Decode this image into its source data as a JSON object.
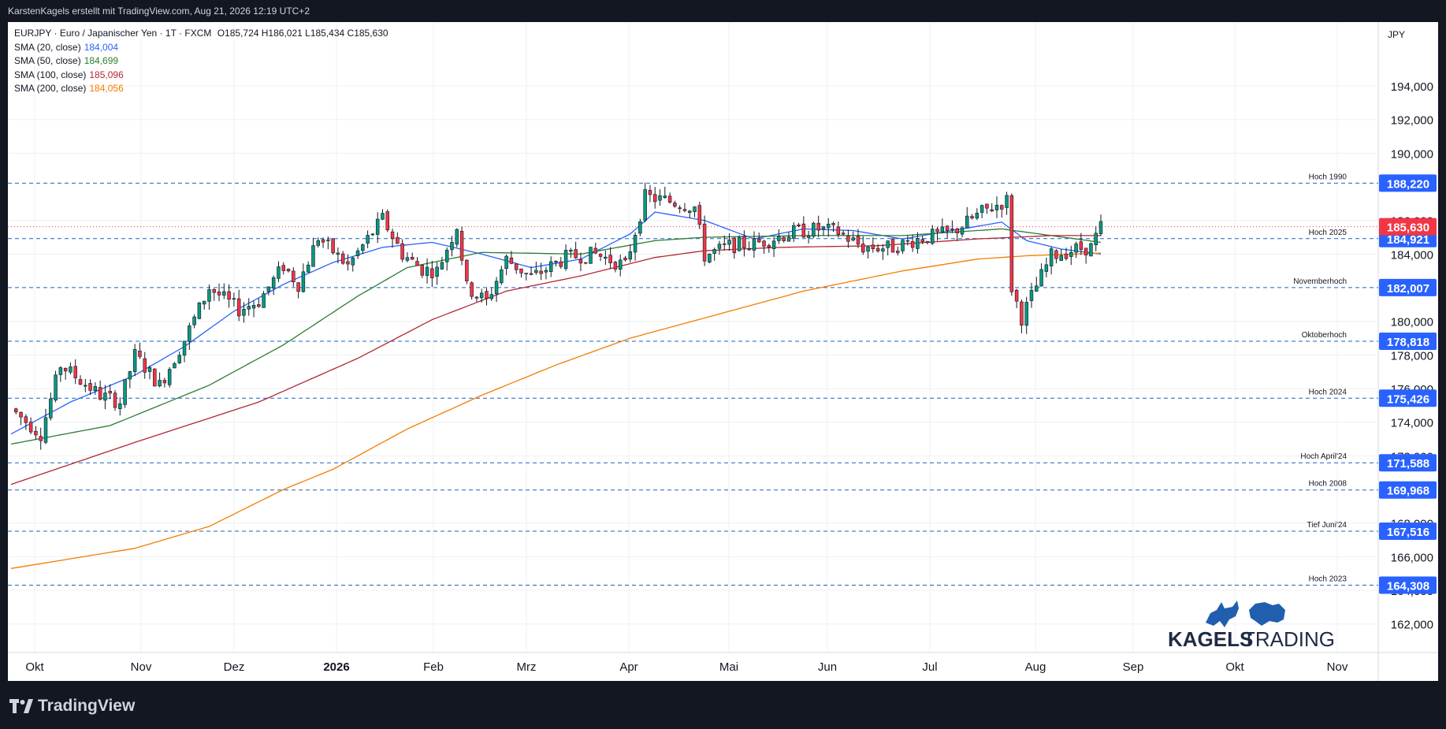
{
  "header": {
    "attribution": "KarstenKagels erstellt mit TradingView.com, Aug 21, 2026 12:19 UTC+2"
  },
  "symbol": {
    "ticker": "EURJPY",
    "description": "Euro / Japanischer Yen",
    "interval": "1T",
    "exchange": "FXCM",
    "ohlc_text": "O185,724 H186,021 L185,434 C185,630",
    "currency": "JPY"
  },
  "indicators": [
    {
      "label": "SMA (20, close)",
      "value": "184,004",
      "color": "#2962ff"
    },
    {
      "label": "SMA (50, close)",
      "value": "184,699",
      "color": "#2e7d32"
    },
    {
      "label": "SMA (100, close)",
      "value": "185,096",
      "color": "#b22833"
    },
    {
      "label": "SMA (200, close)",
      "value": "184,056",
      "color": "#f57c00"
    }
  ],
  "footer": {
    "brand": "TradingView"
  },
  "watermark": {
    "text_bold": "KAGELS",
    "text_light": "TRADING"
  },
  "chart_data": {
    "type": "candlestick",
    "x_axis": {
      "tick_labels": [
        "Okt",
        "Nov",
        "Dez",
        "2026",
        "Feb",
        "Mrz",
        "Apr",
        "Mai",
        "Jun",
        "Jul",
        "Aug",
        "Sep",
        "Okt",
        "Nov"
      ]
    },
    "y_axis": {
      "range": [
        160.3,
        197.8
      ],
      "tick_values": [
        162,
        164,
        166,
        168,
        172,
        174,
        176,
        178,
        180,
        184,
        186,
        190,
        192,
        194
      ],
      "tick_labels": [
        "162,000",
        "164,000",
        "166,000",
        "168,000",
        "172,000",
        "174,000",
        "176,000",
        "178,000",
        "180,000",
        "184,000",
        "186,000",
        "190,000",
        "192,000",
        "194,000"
      ]
    },
    "horizontal_levels": [
      {
        "label": "Hoch 1990",
        "value": 188.22,
        "price_label": "188,220"
      },
      {
        "label": "Hoch 2025",
        "value": 184.921,
        "price_label": "184,921"
      },
      {
        "label": "Novemberhoch",
        "value": 182.007,
        "price_label": "182,007"
      },
      {
        "label": "Oktoberhoch",
        "value": 178.818,
        "price_label": "178,818"
      },
      {
        "label": "Hoch 2024",
        "value": 175.426,
        "price_label": "175,426"
      },
      {
        "label": "Hoch April'24",
        "value": 171.588,
        "price_label": "171,588"
      },
      {
        "label": "Hoch 2008",
        "value": 169.968,
        "price_label": "169,968"
      },
      {
        "label": "Tief Juni'24",
        "value": 167.516,
        "price_label": "167,516"
      },
      {
        "label": "Hoch 2023",
        "value": 164.308,
        "price_label": "164,308"
      }
    ],
    "last_price": {
      "value": 185.63,
      "label": "185,630",
      "color": "#f23645"
    },
    "candle_colors": {
      "up": "#089981",
      "down": "#f23645"
    },
    "price_path": [
      [
        0,
        174.8
      ],
      [
        6,
        173.3
      ],
      [
        10,
        177.4
      ],
      [
        18,
        175.6
      ],
      [
        22,
        175.2
      ],
      [
        25,
        178.0
      ],
      [
        30,
        176.2
      ],
      [
        35,
        178.9
      ],
      [
        40,
        182.0
      ],
      [
        46,
        180.7
      ],
      [
        50,
        181.2
      ],
      [
        55,
        183.3
      ],
      [
        58,
        182.2
      ],
      [
        62,
        185.0
      ],
      [
        68,
        183.3
      ],
      [
        75,
        186.1
      ],
      [
        79,
        184.0
      ],
      [
        83,
        183.1
      ],
      [
        86,
        183.0
      ],
      [
        90,
        185.7
      ],
      [
        92,
        182.0
      ],
      [
        96,
        181.2
      ],
      [
        100,
        183.7
      ],
      [
        105,
        182.6
      ],
      [
        112,
        183.8
      ],
      [
        118,
        184.0
      ],
      [
        124,
        183.3
      ],
      [
        128,
        187.4
      ],
      [
        132,
        187.2
      ],
      [
        138,
        186.8
      ],
      [
        140,
        183.9
      ],
      [
        145,
        184.5
      ],
      [
        150,
        184.6
      ],
      [
        158,
        185.3
      ],
      [
        163,
        185.5
      ],
      [
        167,
        185.3
      ],
      [
        172,
        184.4
      ],
      [
        178,
        184.4
      ],
      [
        183,
        184.9
      ],
      [
        190,
        185.3
      ],
      [
        196,
        186.5
      ],
      [
        201,
        187.2
      ],
      [
        202,
        182.0
      ],
      [
        204,
        180.2
      ],
      [
        206,
        181.5
      ],
      [
        210,
        183.9
      ],
      [
        215,
        184.3
      ],
      [
        218,
        184.4
      ],
      [
        220,
        185.6
      ]
    ],
    "sma_series": [
      {
        "name": "SMA (20, close)",
        "color": "#2962ff",
        "points": [
          [
            0,
            173.3
          ],
          [
            12,
            175.2
          ],
          [
            25,
            176.8
          ],
          [
            35,
            178.5
          ],
          [
            45,
            180.6
          ],
          [
            55,
            182.2
          ],
          [
            65,
            183.5
          ],
          [
            75,
            184.4
          ],
          [
            85,
            184.7
          ],
          [
            95,
            184.0
          ],
          [
            105,
            183.2
          ],
          [
            115,
            183.7
          ],
          [
            125,
            185.2
          ],
          [
            130,
            186.5
          ],
          [
            140,
            186.0
          ],
          [
            150,
            184.9
          ],
          [
            160,
            185.5
          ],
          [
            170,
            185.4
          ],
          [
            180,
            184.9
          ],
          [
            190,
            185.4
          ],
          [
            200,
            185.9
          ],
          [
            205,
            184.8
          ],
          [
            212,
            184.3
          ],
          [
            220,
            184.0
          ]
        ]
      },
      {
        "name": "SMA (50, close)",
        "color": "#2e7d32",
        "points": [
          [
            0,
            172.7
          ],
          [
            20,
            173.8
          ],
          [
            40,
            176.2
          ],
          [
            55,
            178.6
          ],
          [
            70,
            181.5
          ],
          [
            80,
            183.2
          ],
          [
            95,
            184.1
          ],
          [
            115,
            184.0
          ],
          [
            130,
            184.8
          ],
          [
            140,
            185.0
          ],
          [
            160,
            185.1
          ],
          [
            180,
            185.1
          ],
          [
            200,
            185.5
          ],
          [
            210,
            185.1
          ],
          [
            220,
            184.7
          ]
        ]
      },
      {
        "name": "SMA (100, close)",
        "color": "#b22833",
        "points": [
          [
            0,
            170.3
          ],
          [
            25,
            172.8
          ],
          [
            50,
            175.2
          ],
          [
            70,
            177.8
          ],
          [
            85,
            180.1
          ],
          [
            100,
            181.8
          ],
          [
            115,
            182.7
          ],
          [
            130,
            183.8
          ],
          [
            140,
            184.2
          ],
          [
            155,
            184.4
          ],
          [
            175,
            184.5
          ],
          [
            195,
            184.9
          ],
          [
            210,
            185.1
          ],
          [
            220,
            185.1
          ]
        ]
      },
      {
        "name": "SMA (200, close)",
        "color": "#f57c00",
        "points": [
          [
            0,
            165.3
          ],
          [
            25,
            166.5
          ],
          [
            40,
            167.8
          ],
          [
            55,
            170.0
          ],
          [
            65,
            171.2
          ],
          [
            80,
            173.6
          ],
          [
            95,
            175.6
          ],
          [
            110,
            177.4
          ],
          [
            125,
            179.0
          ],
          [
            140,
            180.2
          ],
          [
            160,
            181.8
          ],
          [
            180,
            183.0
          ],
          [
            195,
            183.7
          ],
          [
            205,
            183.9
          ],
          [
            220,
            184.06
          ]
        ]
      }
    ]
  }
}
